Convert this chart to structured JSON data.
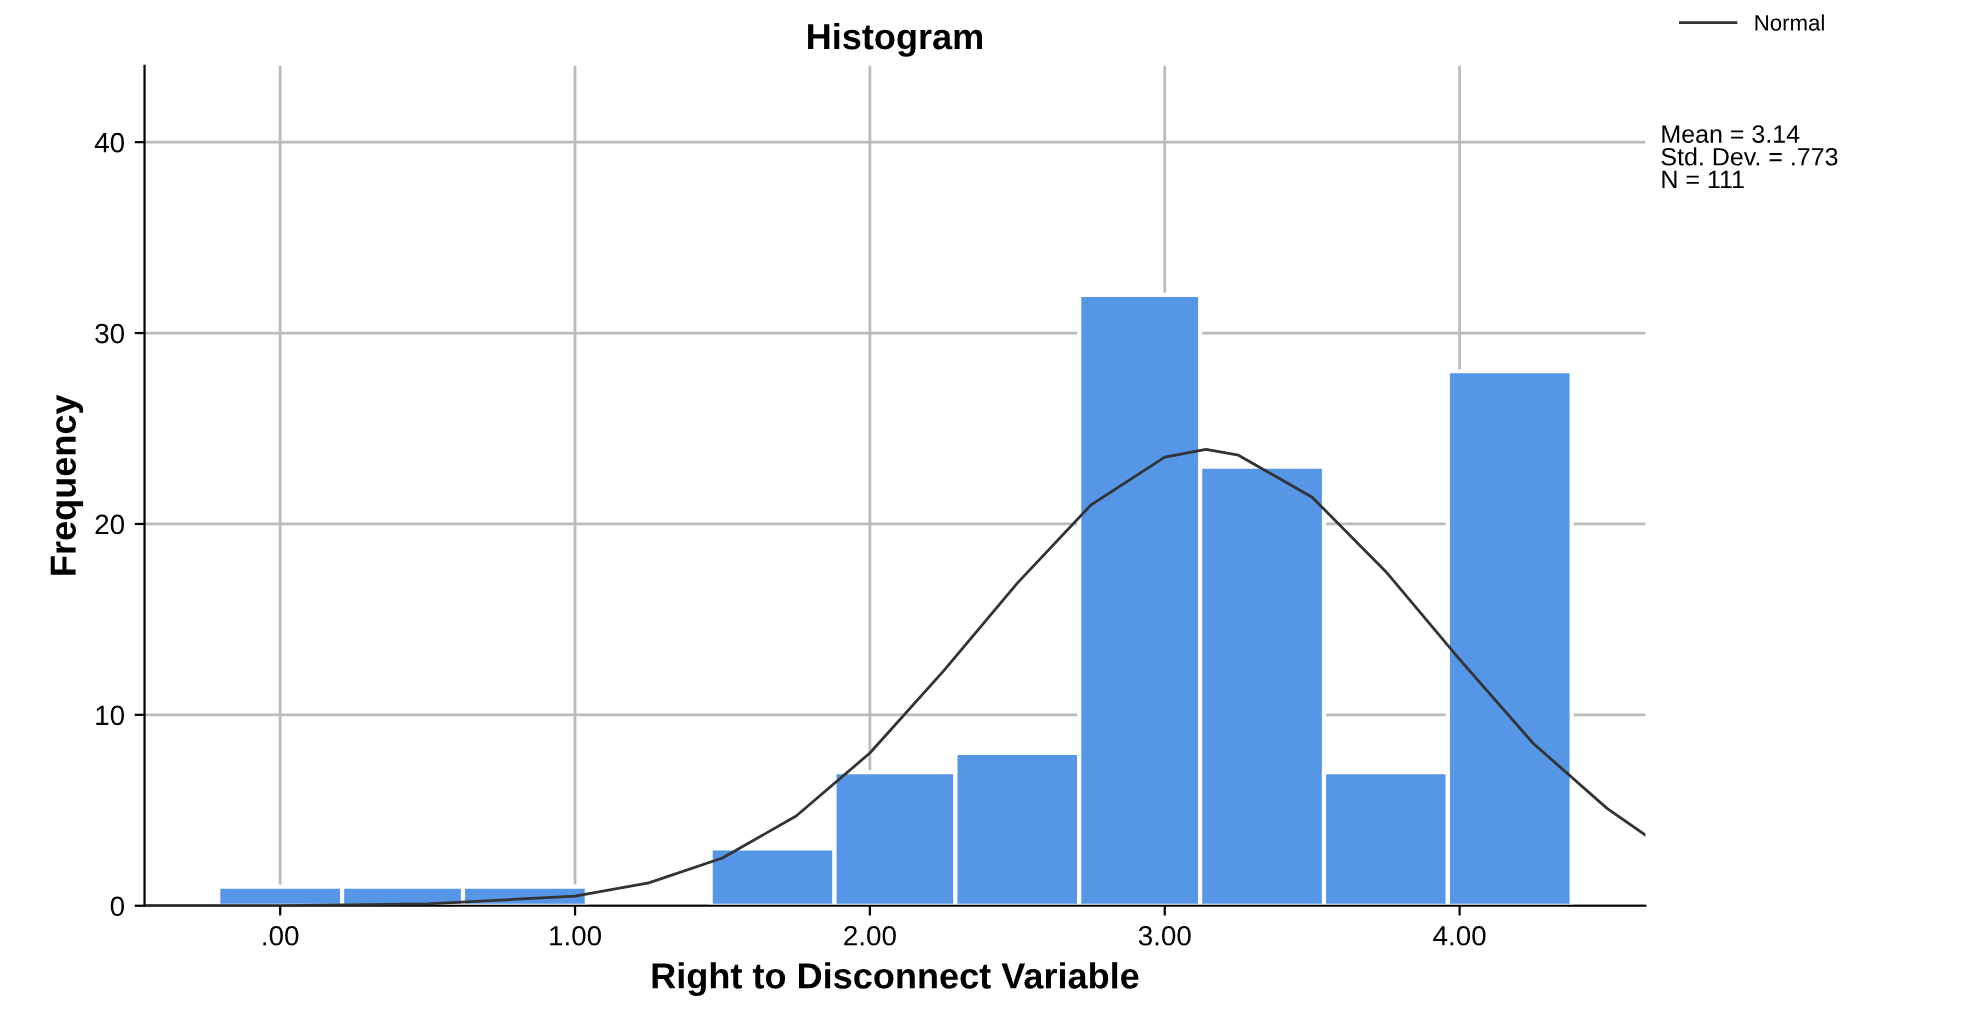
{
  "chart_data": {
    "type": "histogram",
    "title": "Histogram",
    "xlabel": "Right to Disconnect Variable",
    "ylabel": "Frequency",
    "bins": [
      -0.21,
      0.21,
      0.62,
      1.04,
      1.46,
      1.88,
      2.29,
      2.71,
      3.12,
      3.54,
      3.96,
      4.38
    ],
    "values": [
      1,
      1,
      1,
      0,
      3,
      7,
      8,
      32,
      23,
      7,
      28
    ],
    "color": "#5596e6",
    "series": [
      {
        "name": "Normal",
        "type": "line",
        "color": "#333333",
        "x": [
          -0.46,
          0.0,
          0.5,
          1.0,
          1.25,
          1.5,
          1.75,
          2.0,
          2.25,
          2.5,
          2.75,
          3.0,
          3.14,
          3.25,
          3.5,
          3.75,
          4.0,
          4.25,
          4.5,
          4.63
        ],
        "values": [
          0,
          0,
          0.1,
          0.5,
          1.2,
          2.5,
          4.7,
          8.0,
          12.3,
          16.9,
          21.0,
          23.5,
          23.9,
          23.6,
          21.4,
          17.5,
          12.9,
          8.5,
          5.1,
          3.7
        ]
      }
    ],
    "xlim": [
      -0.46,
      4.63
    ],
    "ylim": [
      0,
      44
    ],
    "xticks": [
      {
        "value": 0,
        "label": ".00"
      },
      {
        "value": 1,
        "label": "1.00"
      },
      {
        "value": 2,
        "label": "2.00"
      },
      {
        "value": 3,
        "label": "3.00"
      },
      {
        "value": 4,
        "label": "4.00"
      }
    ],
    "yticks": [
      0,
      10,
      20,
      30,
      40
    ],
    "grid": true,
    "legend": "top right",
    "annotations": [
      "Mean = 3.14",
      "Std. Dev. = .773",
      "N = 111"
    ]
  }
}
